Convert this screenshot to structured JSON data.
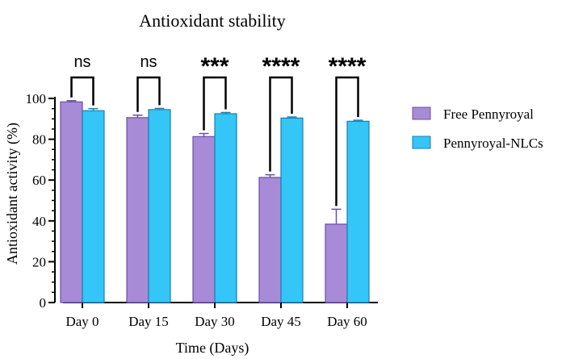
{
  "chart_data": {
    "type": "bar",
    "title": "Antioxidant stability",
    "xlabel": "Time (Days)",
    "ylabel": "Antioxidant activity (%)",
    "ylim": [
      0,
      100
    ],
    "yticks": [
      0,
      20,
      40,
      60,
      80,
      100
    ],
    "y_minor_step": 5,
    "categories": [
      "Day 0",
      "Day 15",
      "Day 30",
      "Day 45",
      "Day 60"
    ],
    "series": [
      {
        "name": "Free Pennyroyal",
        "color": "#a78bd6",
        "values": [
          98.3,
          90.6,
          81.3,
          61.3,
          38.4
        ],
        "errors": [
          0.6,
          1.2,
          1.5,
          1.3,
          7.3
        ]
      },
      {
        "name": "Pennyroyal-NLCs",
        "color": "#33c6f7",
        "values": [
          94.0,
          94.5,
          92.5,
          90.4,
          88.8
        ],
        "errors": [
          1.0,
          0.6,
          0.6,
          0.5,
          0.5
        ]
      }
    ],
    "significance": [
      "ns",
      "ns",
      "***",
      "****",
      "****"
    ],
    "legend_position": "right"
  }
}
